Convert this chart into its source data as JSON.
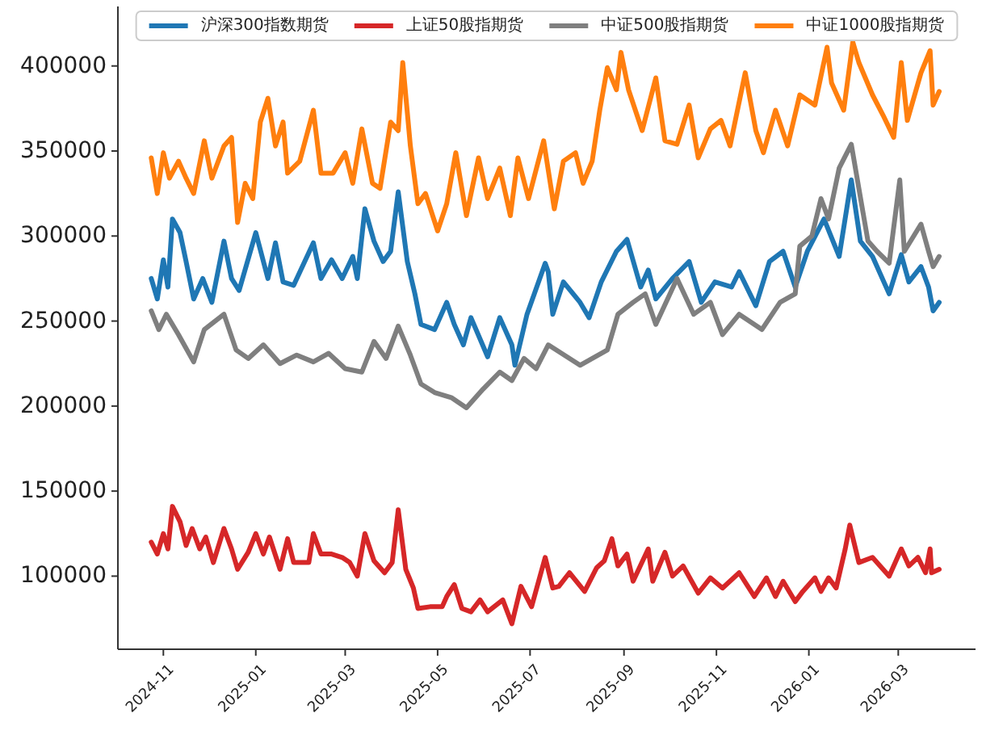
{
  "chart_data": {
    "type": "line",
    "xlim": [
      "2024-10-02",
      "2026-04-21"
    ],
    "ylim": [
      57000,
      435000
    ],
    "xticks": [
      {
        "value": "2024-11-01",
        "label": "2024-11"
      },
      {
        "value": "2025-01-01",
        "label": "2025-01"
      },
      {
        "value": "2025-03-01",
        "label": "2025-03"
      },
      {
        "value": "2025-05-01",
        "label": "2025-05"
      },
      {
        "value": "2025-07-01",
        "label": "2025-07"
      },
      {
        "value": "2025-09-01",
        "label": "2025-09"
      },
      {
        "value": "2025-11-01",
        "label": "2025-11"
      },
      {
        "value": "2026-01-01",
        "label": "2026-01"
      },
      {
        "value": "2026-03-01",
        "label": "2026-03"
      }
    ],
    "yticks": [
      100000,
      150000,
      200000,
      250000,
      300000,
      350000,
      400000
    ],
    "legend": "top",
    "line_style": "solid",
    "series": [
      {
        "name": "沪深300指数期货",
        "color": "#1f77b4",
        "x": [
          "2024-10-24",
          "2024-10-28",
          "2024-11-01",
          "2024-11-04",
          "2024-11-07",
          "2024-11-12",
          "2024-11-16",
          "2024-11-21",
          "2024-11-27",
          "2024-12-03",
          "2024-12-11",
          "2024-12-16",
          "2024-12-21",
          "2025-01-01",
          "2025-01-09",
          "2025-01-14",
          "2025-01-19",
          "2025-01-26",
          "2025-02-08",
          "2025-02-13",
          "2025-02-20",
          "2025-02-27",
          "2025-03-06",
          "2025-03-09",
          "2025-03-14",
          "2025-03-20",
          "2025-03-26",
          "2025-03-31",
          "2025-04-05",
          "2025-04-11",
          "2025-04-16",
          "2025-04-20",
          "2025-04-29",
          "2025-05-07",
          "2025-05-12",
          "2025-05-18",
          "2025-05-23",
          "2025-06-03",
          "2025-06-11",
          "2025-06-19",
          "2025-06-21",
          "2025-06-29",
          "2025-07-11",
          "2025-07-13",
          "2025-07-16",
          "2025-07-23",
          "2025-08-03",
          "2025-08-09",
          "2025-08-17",
          "2025-08-27",
          "2025-09-03",
          "2025-09-12",
          "2025-09-17",
          "2025-09-22",
          "2025-10-03",
          "2025-10-14",
          "2025-10-22",
          "2025-10-31",
          "2025-11-11",
          "2025-11-16",
          "2025-11-27",
          "2025-12-06",
          "2025-12-15",
          "2025-12-23",
          "2025-12-31",
          "2026-01-11",
          "2026-01-21",
          "2026-01-29",
          "2026-02-04",
          "2026-02-12",
          "2026-02-23",
          "2026-03-03",
          "2026-03-08",
          "2026-03-16",
          "2026-03-21",
          "2026-03-24",
          "2026-03-28"
        ],
        "values": [
          275000,
          263000,
          286000,
          270000,
          310000,
          302000,
          285000,
          263000,
          275000,
          261000,
          297000,
          275000,
          268000,
          302000,
          275000,
          296000,
          273000,
          271000,
          296000,
          275000,
          286000,
          275000,
          288000,
          275000,
          316000,
          297000,
          285000,
          291000,
          326000,
          285000,
          266000,
          248000,
          245000,
          261000,
          248000,
          236000,
          252000,
          229000,
          252000,
          236000,
          224000,
          254000,
          284000,
          279000,
          254000,
          273000,
          261000,
          252000,
          273000,
          291000,
          298000,
          270000,
          280000,
          263000,
          275000,
          285000,
          261000,
          273000,
          270000,
          279000,
          259000,
          285000,
          291000,
          270000,
          291000,
          310000,
          288000,
          333000,
          297000,
          288000,
          266000,
          289000,
          273000,
          282000,
          270000,
          256000,
          261000
        ]
      },
      {
        "name": "上证50股指期货",
        "color": "#d62728",
        "x": [
          "2024-10-24",
          "2024-10-28",
          "2024-11-01",
          "2024-11-04",
          "2024-11-07",
          "2024-11-12",
          "2024-11-16",
          "2024-11-20",
          "2024-11-25",
          "2024-11-29",
          "2024-12-04",
          "2024-12-11",
          "2024-12-16",
          "2024-12-20",
          "2024-12-27",
          "2025-01-01",
          "2025-01-06",
          "2025-01-10",
          "2025-01-17",
          "2025-01-22",
          "2025-01-26",
          "2025-02-05",
          "2025-02-08",
          "2025-02-13",
          "2025-02-20",
          "2025-02-27",
          "2025-03-04",
          "2025-03-09",
          "2025-03-14",
          "2025-03-20",
          "2025-03-27",
          "2025-04-01",
          "2025-04-05",
          "2025-04-10",
          "2025-04-15",
          "2025-04-18",
          "2025-04-26",
          "2025-05-04",
          "2025-05-07",
          "2025-05-12",
          "2025-05-17",
          "2025-05-23",
          "2025-05-29",
          "2025-06-03",
          "2025-06-13",
          "2025-06-19",
          "2025-06-25",
          "2025-07-02",
          "2025-07-11",
          "2025-07-16",
          "2025-07-20",
          "2025-07-27",
          "2025-08-06",
          "2025-08-14",
          "2025-08-19",
          "2025-08-24",
          "2025-08-28",
          "2025-09-03",
          "2025-09-07",
          "2025-09-17",
          "2025-09-20",
          "2025-09-28",
          "2025-10-03",
          "2025-10-10",
          "2025-10-20",
          "2025-10-28",
          "2025-11-05",
          "2025-11-16",
          "2025-11-26",
          "2025-12-04",
          "2025-12-10",
          "2025-12-15",
          "2025-12-23",
          "2025-12-28",
          "2026-01-05",
          "2026-01-09",
          "2026-01-14",
          "2026-01-19",
          "2026-01-25",
          "2026-01-28",
          "2026-02-03",
          "2026-02-12",
          "2026-02-23",
          "2026-03-03",
          "2026-03-08",
          "2026-03-14",
          "2026-03-19",
          "2026-03-22",
          "2026-03-23",
          "2026-03-28"
        ],
        "values": [
          120000,
          113000,
          125000,
          116000,
          141000,
          132000,
          118000,
          128000,
          116000,
          123000,
          108000,
          128000,
          116000,
          104000,
          114000,
          125000,
          113000,
          123000,
          104000,
          122000,
          108000,
          108000,
          125000,
          113000,
          113000,
          111000,
          108000,
          100000,
          125000,
          109000,
          102000,
          108000,
          139000,
          104000,
          93000,
          81000,
          82000,
          82000,
          88000,
          95000,
          81000,
          79000,
          86000,
          79000,
          86000,
          72000,
          94000,
          82000,
          111000,
          93000,
          94000,
          102000,
          91000,
          105000,
          109000,
          122000,
          106000,
          113000,
          97000,
          116000,
          97000,
          114000,
          100000,
          106000,
          90000,
          99000,
          93000,
          102000,
          88000,
          99000,
          88000,
          97000,
          85000,
          91000,
          99000,
          91000,
          99000,
          93000,
          116000,
          130000,
          108000,
          111000,
          100000,
          116000,
          106000,
          111000,
          102000,
          116000,
          102000,
          104000
        ]
      },
      {
        "name": "中证500股指期货",
        "color": "#7f7f7f",
        "x": [
          "2024-10-24",
          "2024-10-29",
          "2024-11-03",
          "2024-11-11",
          "2024-11-21",
          "2024-11-28",
          "2024-12-11",
          "2024-12-19",
          "2024-12-27",
          "2025-01-06",
          "2025-01-17",
          "2025-01-28",
          "2025-02-08",
          "2025-02-18",
          "2025-03-01",
          "2025-03-12",
          "2025-03-20",
          "2025-03-28",
          "2025-04-05",
          "2025-04-13",
          "2025-04-20",
          "2025-04-29",
          "2025-05-10",
          "2025-05-20",
          "2025-05-31",
          "2025-06-11",
          "2025-06-19",
          "2025-06-27",
          "2025-07-05",
          "2025-07-13",
          "2025-08-03",
          "2025-08-21",
          "2025-08-28",
          "2025-09-07",
          "2025-09-15",
          "2025-09-22",
          "2025-10-06",
          "2025-10-17",
          "2025-10-28",
          "2025-11-05",
          "2025-11-16",
          "2025-12-01",
          "2025-12-13",
          "2025-12-23",
          "2025-12-26",
          "2026-01-03",
          "2026-01-09",
          "2026-01-14",
          "2026-01-21",
          "2026-01-29",
          "2026-02-03",
          "2026-02-09",
          "2026-02-15",
          "2026-02-23",
          "2026-03-02",
          "2026-03-05",
          "2026-03-16",
          "2026-03-21",
          "2026-03-24",
          "2026-03-28"
        ],
        "values": [
          256000,
          245000,
          254000,
          242000,
          226000,
          245000,
          254000,
          233000,
          228000,
          236000,
          225000,
          230000,
          226000,
          231000,
          222000,
          220000,
          238000,
          228000,
          247000,
          230000,
          213000,
          208000,
          205000,
          199000,
          210000,
          220000,
          215000,
          228000,
          222000,
          236000,
          224000,
          233000,
          254000,
          261000,
          266000,
          248000,
          275000,
          254000,
          261000,
          242000,
          254000,
          245000,
          261000,
          266000,
          294000,
          300000,
          322000,
          310000,
          340000,
          354000,
          328000,
          297000,
          291000,
          284000,
          333000,
          291000,
          307000,
          291000,
          282000,
          288000
        ]
      },
      {
        "name": "中证1000股指期货",
        "color": "#ff7f0e",
        "x": [
          "2024-10-24",
          "2024-10-28",
          "2024-11-01",
          "2024-11-05",
          "2024-11-11",
          "2024-11-16",
          "2024-11-21",
          "2024-11-28",
          "2024-12-03",
          "2024-12-11",
          "2024-12-16",
          "2024-12-20",
          "2024-12-25",
          "2024-12-30",
          "2025-01-04",
          "2025-01-09",
          "2025-01-14",
          "2025-01-19",
          "2025-01-22",
          "2025-01-30",
          "2025-02-08",
          "2025-02-13",
          "2025-02-21",
          "2025-03-01",
          "2025-03-06",
          "2025-03-12",
          "2025-03-19",
          "2025-03-24",
          "2025-03-31",
          "2025-04-05",
          "2025-04-08",
          "2025-04-13",
          "2025-04-18",
          "2025-04-23",
          "2025-05-01",
          "2025-05-07",
          "2025-05-13",
          "2025-05-20",
          "2025-05-28",
          "2025-06-03",
          "2025-06-11",
          "2025-06-18",
          "2025-06-23",
          "2025-06-30",
          "2025-07-10",
          "2025-07-17",
          "2025-07-23",
          "2025-07-31",
          "2025-08-05",
          "2025-08-11",
          "2025-08-16",
          "2025-08-21",
          "2025-08-27",
          "2025-08-30",
          "2025-09-04",
          "2025-09-13",
          "2025-09-22",
          "2025-09-28",
          "2025-10-06",
          "2025-10-14",
          "2025-10-20",
          "2025-10-28",
          "2025-11-04",
          "2025-11-10",
          "2025-11-20",
          "2025-11-27",
          "2025-12-02",
          "2025-12-10",
          "2025-12-18",
          "2025-12-26",
          "2026-01-05",
          "2026-01-13",
          "2026-01-16",
          "2026-01-24",
          "2026-01-30",
          "2026-02-03",
          "2026-02-12",
          "2026-02-19",
          "2026-02-26",
          "2026-03-03",
          "2026-03-07",
          "2026-03-16",
          "2026-03-22",
          "2026-03-24",
          "2026-03-28"
        ],
        "values": [
          346000,
          325000,
          349000,
          334000,
          344000,
          334000,
          325000,
          356000,
          334000,
          353000,
          358000,
          308000,
          331000,
          322000,
          367000,
          381000,
          353000,
          367000,
          337000,
          344000,
          374000,
          337000,
          337000,
          349000,
          331000,
          363000,
          331000,
          328000,
          367000,
          362000,
          402000,
          353000,
          319000,
          325000,
          303000,
          319000,
          349000,
          312000,
          346000,
          322000,
          340000,
          312000,
          346000,
          322000,
          356000,
          316000,
          344000,
          349000,
          331000,
          344000,
          374000,
          399000,
          386000,
          408000,
          386000,
          362000,
          393000,
          356000,
          354000,
          377000,
          346000,
          363000,
          368000,
          353000,
          396000,
          362000,
          349000,
          374000,
          353000,
          383000,
          377000,
          411000,
          390000,
          374000,
          414000,
          402000,
          383000,
          371000,
          358000,
          402000,
          368000,
          396000,
          409000,
          377000,
          385000
        ]
      }
    ]
  }
}
